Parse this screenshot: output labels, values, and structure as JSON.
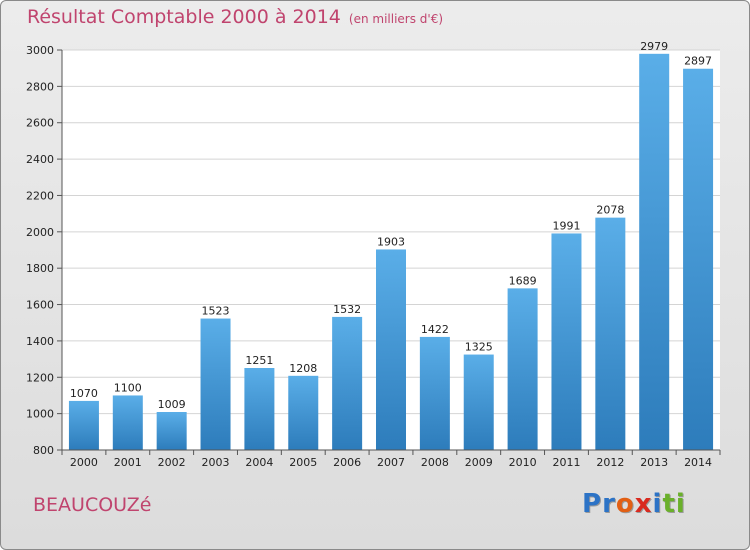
{
  "title": "Résultat Comptable 2000 à 2014",
  "subtitle": "(en milliers d'€)",
  "place": "BEAUCOUZé",
  "logo": [
    "P",
    "r",
    "o",
    "x",
    "i",
    "ti"
  ],
  "colors": {
    "bar_light": "#5aaee8",
    "bar_dark": "#2d7cbb",
    "title": "#c0446e",
    "plot_bg": "#ffffff",
    "grid": "#d4d4d4"
  },
  "chart_data": {
    "type": "bar",
    "categories": [
      "2000",
      "2001",
      "2002",
      "2003",
      "2004",
      "2005",
      "2006",
      "2007",
      "2008",
      "2009",
      "2010",
      "2011",
      "2012",
      "2013",
      "2014"
    ],
    "values": [
      1070,
      1100,
      1009,
      1523,
      1251,
      1208,
      1532,
      1903,
      1422,
      1325,
      1689,
      1991,
      2078,
      2979,
      2897
    ],
    "ylim": [
      800,
      3000
    ],
    "yticks": [
      800,
      1000,
      1200,
      1400,
      1600,
      1800,
      2000,
      2200,
      2400,
      2600,
      2800,
      3000
    ],
    "grid": true,
    "data_labels": true
  }
}
